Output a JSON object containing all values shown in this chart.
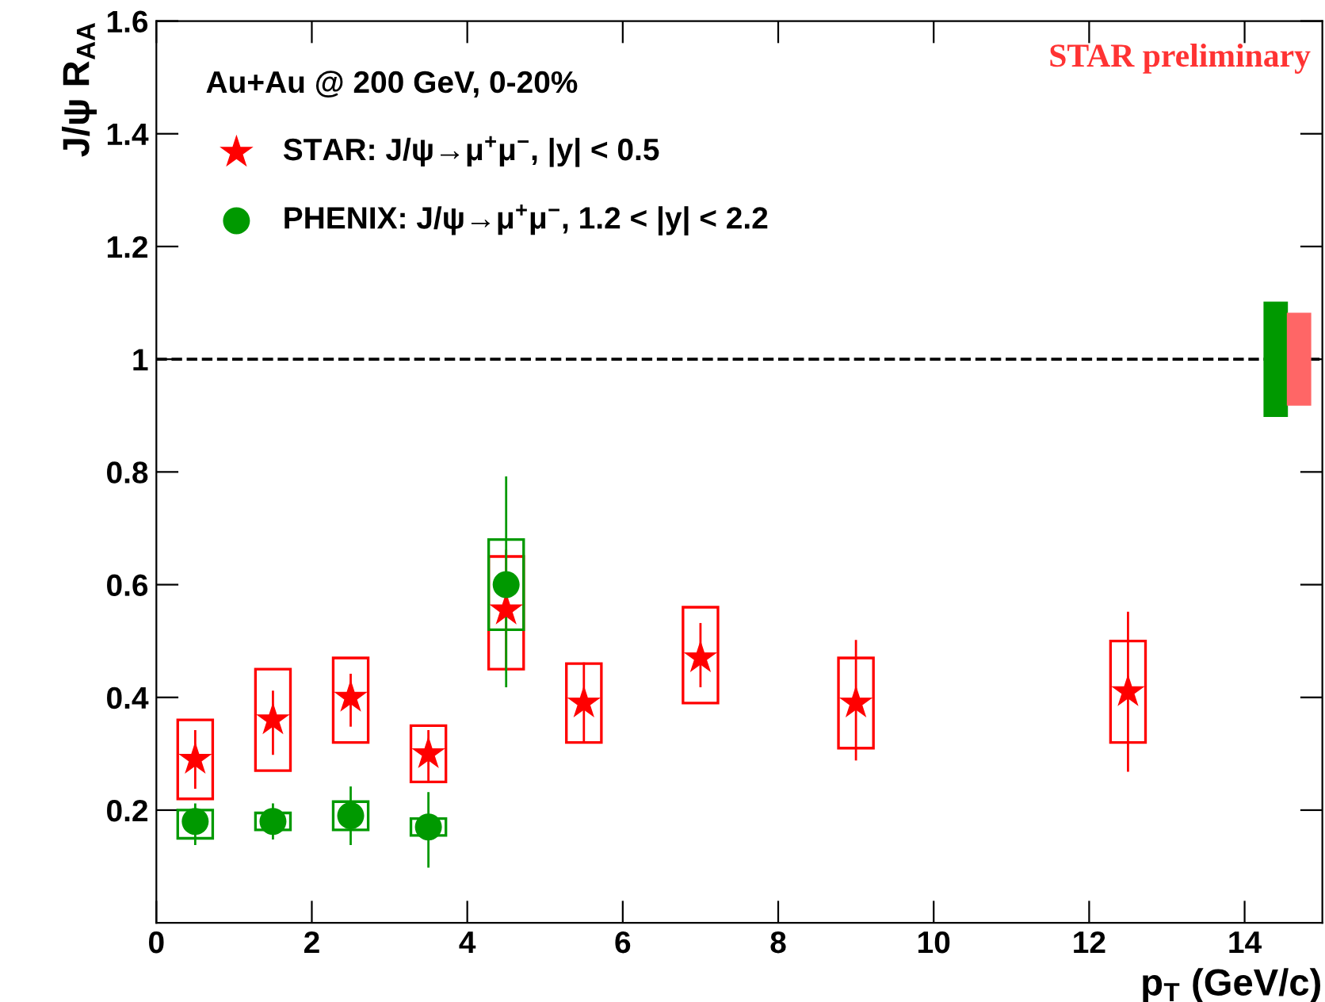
{
  "chart_data": {
    "type": "scatter",
    "xlabel": "p$_{T}$ (GeV/c)",
    "ylabel": "J/ψ R$_{AA}$",
    "legend_title": "Au+Au @ 200 GeV, 0-20%",
    "legend": "top left",
    "grid": false,
    "xlim": [
      0,
      15
    ],
    "xticks": [
      0,
      2,
      4,
      6,
      8,
      10,
      12,
      14
    ],
    "ylim": [
      0,
      1.6
    ],
    "yticks": [
      0.2,
      0.4,
      0.6,
      0.8,
      1,
      1.2,
      1.4,
      1.6
    ],
    "annotations": [
      "STAR preliminary"
    ],
    "ref_lines": [
      {
        "axis": "y",
        "value": 1,
        "color": "#000000",
        "line_style": "dashed"
      }
    ],
    "series": [
      {
        "type": "bar",
        "line_style": "solid",
        "color": "#ff0000",
        "x": [
          0.5,
          1.5,
          2.5,
          3.5,
          4.5,
          5.5,
          7,
          9,
          12.5
        ],
        "base": [
          0.22,
          0.27,
          0.32,
          0.25,
          0.45,
          0.32,
          0.39,
          0.31,
          0.32
        ],
        "values": [
          0.14,
          0.18,
          0.15,
          0.1,
          0.2,
          0.14,
          0.17,
          0.16,
          0.18
        ]
      },
      {
        "type": "bar",
        "line_style": "solid",
        "color": "#009900",
        "x": [
          0.5,
          1.5,
          2.5,
          3.5,
          4.5
        ],
        "base": [
          0.15,
          0.165,
          0.165,
          0.155,
          0.52
        ],
        "values": [
          0.05,
          0.03,
          0.05,
          0.03,
          0.16
        ]
      },
      {
        "type": "bar",
        "color": "#009900",
        "x": [
          14.4
        ],
        "base": [
          0.9
        ],
        "values": [
          0.2
        ]
      },
      {
        "type": "bar",
        "color": "#ff6666",
        "x": [
          14.7
        ],
        "base": [
          0.92
        ],
        "values": [
          0.16
        ]
      },
      {
        "name": "STAR: J/ψ→μ$^{+}$μ$^{−}$, |y| < 0.5",
        "marker": "star",
        "color": "#ff0000",
        "x": [
          0.5,
          1.5,
          2.5,
          3.5,
          4.5,
          5.5,
          7,
          9,
          12.5
        ],
        "values": [
          0.29,
          0.36,
          0.4,
          0.3,
          0.555,
          0.39,
          0.47,
          0.39,
          0.41
        ],
        "errors": [
          [
            0.24,
            0.34
          ],
          [
            0.3,
            0.41
          ],
          [
            0.35,
            0.44
          ],
          [
            0.25,
            0.34
          ],
          [
            0.45,
            0.66
          ],
          [
            0.32,
            0.46
          ],
          [
            0.42,
            0.53
          ],
          [
            0.29,
            0.5
          ],
          [
            0.27,
            0.55
          ]
        ]
      },
      {
        "name": "PHENIX: J/ψ→μ$^{+}$μ$^{−}$, 1.2 < |y| < 2.2",
        "marker": "circle",
        "color": "#009900",
        "x": [
          0.5,
          1.5,
          2.5,
          3.5,
          4.5
        ],
        "values": [
          0.18,
          0.18,
          0.19,
          0.17,
          0.6
        ],
        "errors": [
          [
            0.14,
            0.21
          ],
          [
            0.15,
            0.21
          ],
          [
            0.14,
            0.24
          ],
          [
            0.1,
            0.23
          ],
          [
            0.42,
            0.79
          ]
        ]
      }
    ]
  }
}
